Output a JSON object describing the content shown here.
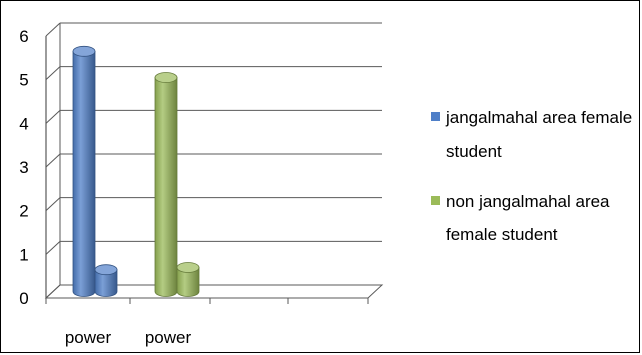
{
  "chart_data": {
    "type": "bar",
    "title": "",
    "xlabel": "",
    "ylabel": "",
    "ylim": [
      0,
      6
    ],
    "yticks": [
      0,
      1,
      2,
      3,
      4,
      5,
      6
    ],
    "grid": true,
    "legend_position": "right",
    "x": [
      "power",
      "power"
    ],
    "series": [
      {
        "name": "jangalmahal area female student",
        "legend_lines": [
          "jangalmahal area female",
          "student"
        ],
        "color": "#4f7fc8",
        "values": [
          5.5,
          0.5
        ]
      },
      {
        "name": "non jangalmahal area female student",
        "legend_lines": [
          "non jangalmahal area",
          "female student"
        ],
        "color": "#9bbb59",
        "values": [
          4.9,
          0.55
        ]
      }
    ]
  }
}
